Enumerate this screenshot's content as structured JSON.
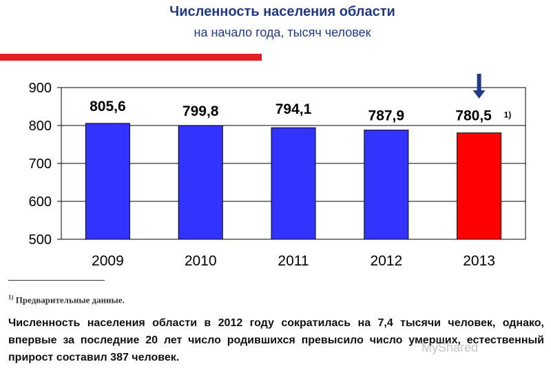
{
  "header": {
    "title": "Численность населения области",
    "subtitle": "на начало года, тысяч человек"
  },
  "chart_data": {
    "type": "bar",
    "categories": [
      "2009",
      "2010",
      "2011",
      "2012",
      "2013"
    ],
    "values": [
      805.6,
      799.8,
      794.1,
      787.9,
      780.5
    ],
    "value_labels": [
      "805,6",
      "799,8",
      "794,1",
      "787,9",
      "780,5"
    ],
    "highlight_index": 4,
    "highlight_note": "1)",
    "ylim": [
      500,
      900
    ],
    "yticks": [
      500,
      600,
      700,
      800,
      900
    ],
    "grid": true,
    "colors": {
      "bar": "#3333ff",
      "highlight": "#ff0000",
      "arrow": "#1f3a8a"
    }
  },
  "footnote": {
    "marker": "1)",
    "text": "Предварительные данные."
  },
  "summary": "Численность населения области в 2012 году сократилась на 7,4 тысячи человек, однако, впервые за последние 20 лет число родившихся превысило число умерших, естественный прирост составил 387 человек.",
  "watermark": "MyShared"
}
